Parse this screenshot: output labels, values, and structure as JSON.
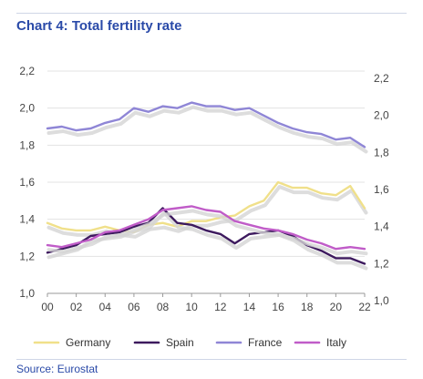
{
  "title": "Chart 4: Total fertility rate",
  "source": "Source: Eurostat",
  "chart_data": {
    "type": "line",
    "x": [
      "00",
      "01",
      "02",
      "03",
      "04",
      "05",
      "06",
      "07",
      "08",
      "09",
      "10",
      "11",
      "12",
      "13",
      "14",
      "15",
      "16",
      "17",
      "18",
      "19",
      "20",
      "21",
      "22"
    ],
    "x_tick_labels": [
      "00",
      "02",
      "04",
      "06",
      "08",
      "10",
      "12",
      "14",
      "16",
      "18",
      "20",
      "22"
    ],
    "y_left_ticks": [
      "1,0",
      "1,2",
      "1,4",
      "1,6",
      "1,8",
      "2,0",
      "2,2"
    ],
    "y_right_ticks": [
      "1,0",
      "1,2",
      "1,4",
      "1,6",
      "1,8",
      "2,0",
      "2,2"
    ],
    "ylim": [
      1.0,
      2.2
    ],
    "grid": true,
    "legend_position": "bottom",
    "series": [
      {
        "name": "Germany",
        "color": "#f0e08a",
        "values": [
          1.38,
          1.35,
          1.34,
          1.34,
          1.36,
          1.34,
          1.33,
          1.37,
          1.38,
          1.36,
          1.39,
          1.39,
          1.41,
          1.42,
          1.47,
          1.5,
          1.6,
          1.57,
          1.57,
          1.54,
          1.53,
          1.58,
          1.46
        ]
      },
      {
        "name": "Spain",
        "color": "#3d1a5e",
        "values": [
          1.22,
          1.24,
          1.26,
          1.31,
          1.32,
          1.33,
          1.36,
          1.38,
          1.46,
          1.38,
          1.37,
          1.34,
          1.32,
          1.27,
          1.32,
          1.33,
          1.34,
          1.31,
          1.26,
          1.23,
          1.19,
          1.19,
          1.16
        ]
      },
      {
        "name": "France",
        "color": "#8f86d6",
        "values": [
          1.89,
          1.9,
          1.88,
          1.89,
          1.92,
          1.94,
          2.0,
          1.98,
          2.01,
          2.0,
          2.03,
          2.01,
          2.01,
          1.99,
          2.0,
          1.96,
          1.92,
          1.89,
          1.87,
          1.86,
          1.83,
          1.84,
          1.79
        ]
      },
      {
        "name": "Italy",
        "color": "#c05cc8",
        "values": [
          1.26,
          1.25,
          1.27,
          1.29,
          1.33,
          1.34,
          1.37,
          1.4,
          1.45,
          1.46,
          1.47,
          1.45,
          1.44,
          1.39,
          1.37,
          1.35,
          1.34,
          1.32,
          1.29,
          1.27,
          1.24,
          1.25,
          1.24
        ]
      }
    ]
  }
}
